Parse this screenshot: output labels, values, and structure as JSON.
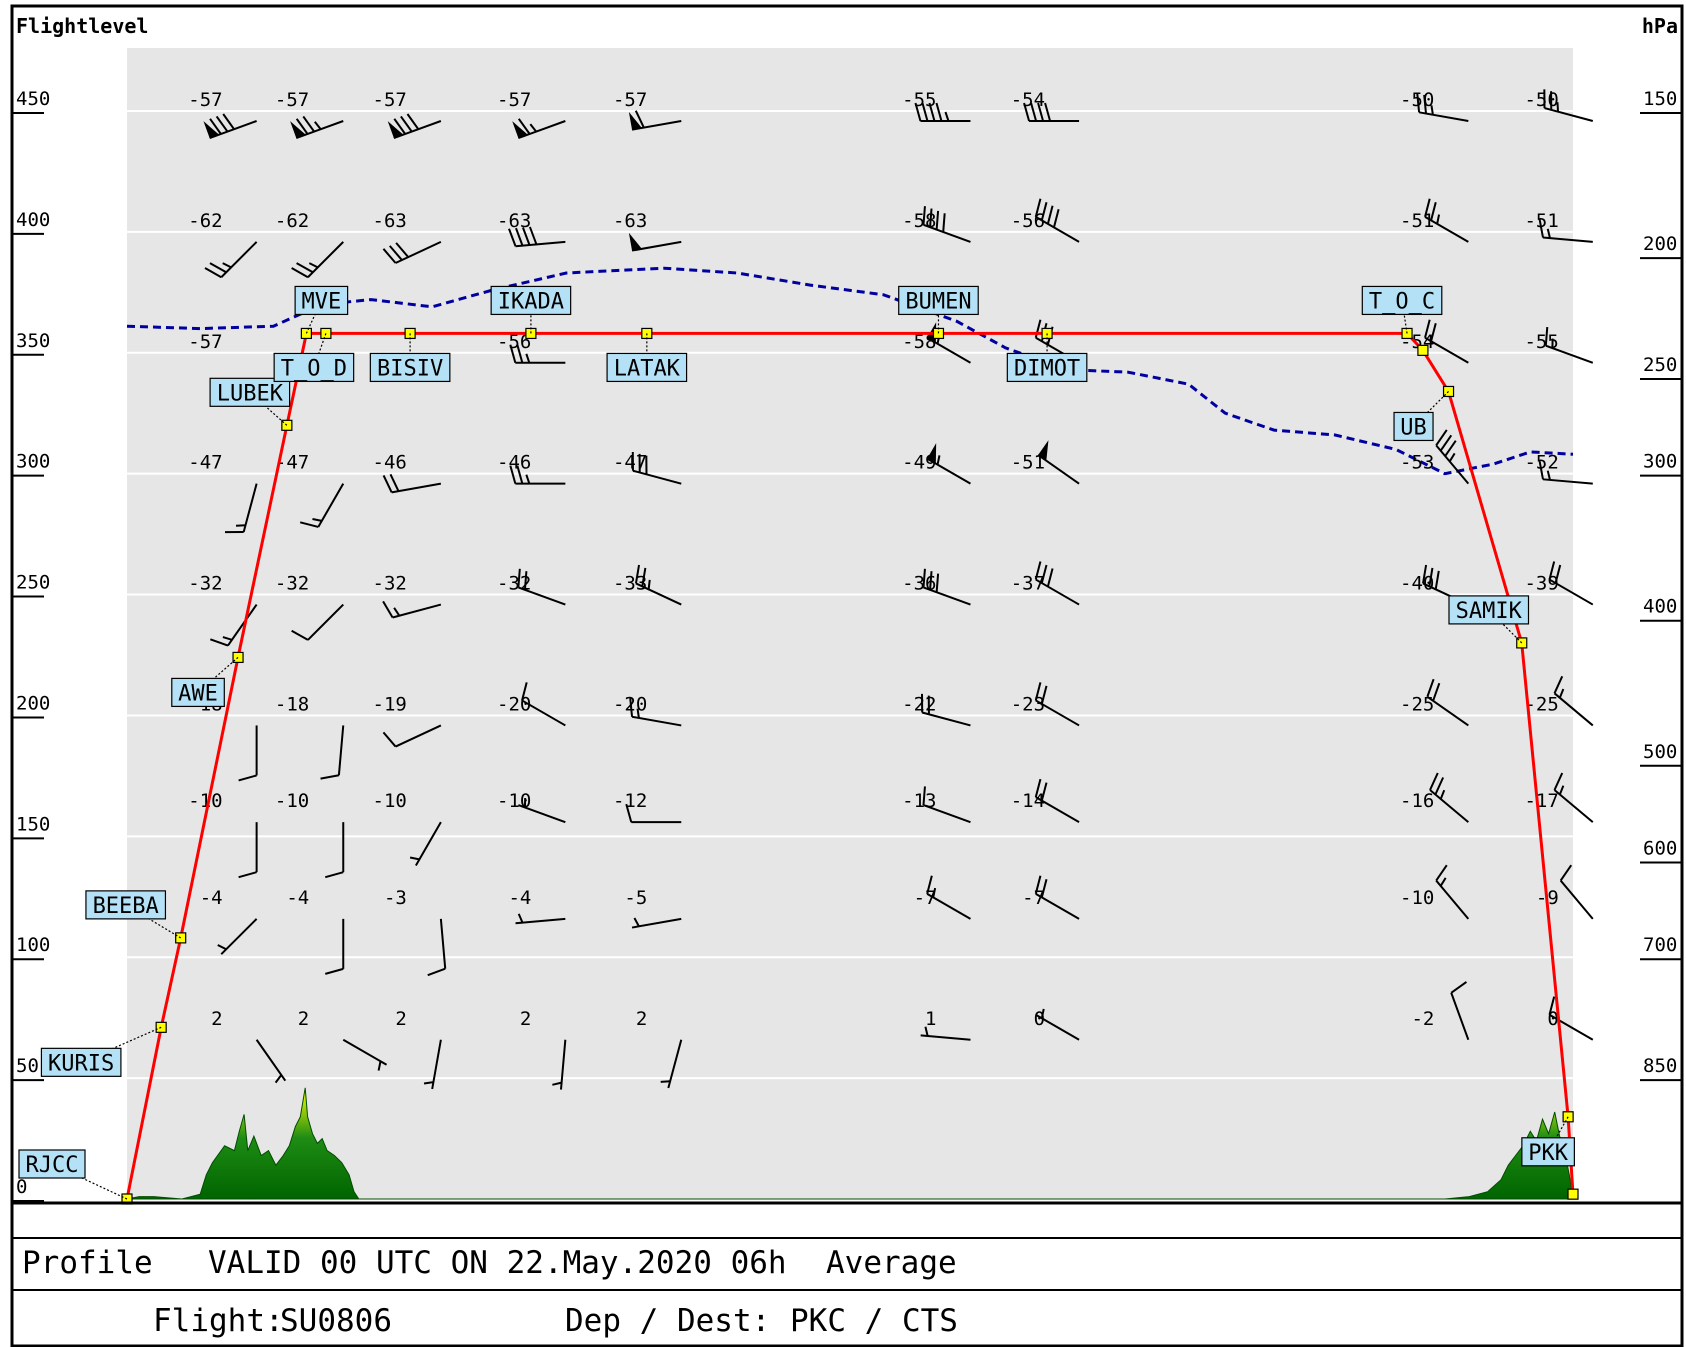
{
  "header": {
    "left_axis_title": "Flightlevel",
    "right_axis_title": "hPa"
  },
  "footer": {
    "profile_label": "Profile",
    "valid_text": "VALID 00 UTC ON 22.May.2020 06h",
    "mode_text": "Average",
    "flight_label": "Flight:",
    "flight_value": "SU0806",
    "dep_dest_label": "Dep / Dest:",
    "dep_dest_value": "PKC / CTS"
  },
  "colors": {
    "background": "#e6e6e6",
    "route": "#ff0000",
    "waypoint_fill": "#ffff00",
    "label_fill": "#b4e1f5",
    "tropopause": "#0000a0",
    "terrain_dark": "#006400",
    "terrain_light": "#ffff00"
  },
  "chart_data": {
    "type": "line",
    "xlabel": "",
    "ylabel": "Flightlevel",
    "y2label": "hPa",
    "ylim": [
      0,
      450
    ],
    "yticks": [
      0,
      50,
      100,
      150,
      200,
      250,
      300,
      350,
      400,
      450
    ],
    "hpa_ticks": [
      {
        "fl": 50,
        "hpa": "850"
      },
      {
        "fl": 100,
        "hpa": "700"
      },
      {
        "fl": 140,
        "hpa": "600"
      },
      {
        "fl": 180,
        "hpa": "500"
      },
      {
        "fl": 240,
        "hpa": "400"
      },
      {
        "fl": 300,
        "hpa": "300"
      },
      {
        "fl": 340,
        "hpa": "250"
      },
      {
        "fl": 390,
        "hpa": "200"
      },
      {
        "fl": 450,
        "hpa": "150"
      }
    ],
    "grid": true,
    "route": [
      {
        "x": 0,
        "fl": 0
      },
      {
        "x": 28,
        "fl": 71
      },
      {
        "x": 44,
        "fl": 108
      },
      {
        "x": 91,
        "fl": 224
      },
      {
        "x": 131,
        "fl": 320
      },
      {
        "x": 147,
        "fl": 358
      },
      {
        "x": 163,
        "fl": 358
      },
      {
        "x": 232,
        "fl": 358
      },
      {
        "x": 331,
        "fl": 358
      },
      {
        "x": 426,
        "fl": 358
      },
      {
        "x": 665,
        "fl": 358
      },
      {
        "x": 754,
        "fl": 358
      },
      {
        "x": 1049,
        "fl": 358
      },
      {
        "x": 1062,
        "fl": 351
      },
      {
        "x": 1083,
        "fl": 334
      },
      {
        "x": 1143,
        "fl": 230
      },
      {
        "x": 1181,
        "fl": 34
      },
      {
        "x": 1185,
        "fl": 2
      }
    ],
    "waypoints": [
      {
        "name": "RJCC",
        "x": 0,
        "fl": 0
      },
      {
        "name": "KURIS",
        "x": 28,
        "fl": 71
      },
      {
        "name": "BEEBA",
        "x": 44,
        "fl": 108
      },
      {
        "name": "AWE",
        "x": 91,
        "fl": 224
      },
      {
        "name": "LUBEK",
        "x": 131,
        "fl": 320
      },
      {
        "name": "MVE",
        "x": 147,
        "fl": 358
      },
      {
        "name": "T_O_D",
        "x": 163,
        "fl": 358
      },
      {
        "name": "BISIV",
        "x": 232,
        "fl": 358
      },
      {
        "name": "IKADA",
        "x": 331,
        "fl": 358
      },
      {
        "name": "LATAK",
        "x": 426,
        "fl": 358
      },
      {
        "name": "BUMEN",
        "x": 665,
        "fl": 358
      },
      {
        "name": "DIMOT",
        "x": 754,
        "fl": 358
      },
      {
        "name": "T_O_C",
        "x": 1049,
        "fl": 358
      },
      {
        "name": "UB",
        "x": 1083,
        "fl": 334
      },
      {
        "name": "SAMIK",
        "x": 1143,
        "fl": 230
      },
      {
        "name": "PKK",
        "x": 1181,
        "fl": 34
      }
    ],
    "tropopause": [
      {
        "x": 0,
        "fl": 361
      },
      {
        "x": 60,
        "fl": 360
      },
      {
        "x": 120,
        "fl": 361
      },
      {
        "x": 160,
        "fl": 370
      },
      {
        "x": 200,
        "fl": 372
      },
      {
        "x": 250,
        "fl": 369
      },
      {
        "x": 300,
        "fl": 376
      },
      {
        "x": 360,
        "fl": 383
      },
      {
        "x": 440,
        "fl": 385
      },
      {
        "x": 500,
        "fl": 383
      },
      {
        "x": 560,
        "fl": 378
      },
      {
        "x": 620,
        "fl": 374
      },
      {
        "x": 680,
        "fl": 363
      },
      {
        "x": 720,
        "fl": 352
      },
      {
        "x": 770,
        "fl": 343
      },
      {
        "x": 820,
        "fl": 342
      },
      {
        "x": 870,
        "fl": 337
      },
      {
        "x": 900,
        "fl": 325
      },
      {
        "x": 940,
        "fl": 318
      },
      {
        "x": 990,
        "fl": 316
      },
      {
        "x": 1040,
        "fl": 310
      },
      {
        "x": 1080,
        "fl": 300
      },
      {
        "x": 1120,
        "fl": 304
      },
      {
        "x": 1150,
        "fl": 309
      },
      {
        "x": 1185,
        "fl": 308
      }
    ],
    "terrain": [
      {
        "x": 0,
        "fl": 0
      },
      {
        "x": 10,
        "fl": 1
      },
      {
        "x": 22,
        "fl": 1
      },
      {
        "x": 45,
        "fl": 0
      },
      {
        "x": 60,
        "fl": 2
      },
      {
        "x": 65,
        "fl": 10
      },
      {
        "x": 70,
        "fl": 15
      },
      {
        "x": 80,
        "fl": 22
      },
      {
        "x": 88,
        "fl": 20
      },
      {
        "x": 92,
        "fl": 28
      },
      {
        "x": 96,
        "fl": 35
      },
      {
        "x": 99,
        "fl": 20
      },
      {
        "x": 104,
        "fl": 26
      },
      {
        "x": 110,
        "fl": 18
      },
      {
        "x": 116,
        "fl": 20
      },
      {
        "x": 122,
        "fl": 14
      },
      {
        "x": 128,
        "fl": 18
      },
      {
        "x": 133,
        "fl": 22
      },
      {
        "x": 138,
        "fl": 30
      },
      {
        "x": 142,
        "fl": 34
      },
      {
        "x": 146,
        "fl": 46
      },
      {
        "x": 148,
        "fl": 34
      },
      {
        "x": 152,
        "fl": 27
      },
      {
        "x": 156,
        "fl": 23
      },
      {
        "x": 160,
        "fl": 25
      },
      {
        "x": 164,
        "fl": 20
      },
      {
        "x": 170,
        "fl": 18
      },
      {
        "x": 176,
        "fl": 15
      },
      {
        "x": 182,
        "fl": 10
      },
      {
        "x": 186,
        "fl": 3
      },
      {
        "x": 190,
        "fl": 0
      },
      {
        "x": 1080,
        "fl": 0
      },
      {
        "x": 1100,
        "fl": 1
      },
      {
        "x": 1115,
        "fl": 3
      },
      {
        "x": 1126,
        "fl": 8
      },
      {
        "x": 1132,
        "fl": 14
      },
      {
        "x": 1138,
        "fl": 18
      },
      {
        "x": 1144,
        "fl": 22
      },
      {
        "x": 1150,
        "fl": 28
      },
      {
        "x": 1155,
        "fl": 24
      },
      {
        "x": 1160,
        "fl": 33
      },
      {
        "x": 1165,
        "fl": 27
      },
      {
        "x": 1170,
        "fl": 36
      },
      {
        "x": 1174,
        "fl": 26
      },
      {
        "x": 1178,
        "fl": 20
      },
      {
        "x": 1182,
        "fl": 10
      },
      {
        "x": 1185,
        "fl": 0
      }
    ],
    "wind_columns_x": [
      80,
      151,
      231,
      333,
      428,
      665,
      754,
      1073,
      1175
    ],
    "wind_levels_fl": [
      450,
      400,
      350,
      300,
      250,
      200,
      160,
      120,
      70
    ],
    "temperatures": [
      [
        "-57",
        "-57",
        "-57",
        "-57",
        "-57",
        "-55",
        "-54",
        "-50",
        "-50"
      ],
      [
        "-62",
        "-62",
        "-63",
        "-63",
        "-63",
        "-58",
        "-56",
        "-51",
        "-51"
      ],
      [
        "-57",
        "",
        "",
        "-56",
        "",
        "-58",
        "",
        "-54",
        "-55"
      ],
      [
        "-47",
        "-47",
        "-46",
        "-46",
        "-47",
        "-49",
        "-51",
        "-53",
        "-52"
      ],
      [
        "-32",
        "-32",
        "-32",
        "-32",
        "-33",
        "-36",
        "-37",
        "-40",
        "-39"
      ],
      [
        "-18",
        "-18",
        "-19",
        "-20",
        "-20",
        "-22",
        "-23",
        "-25",
        "-25"
      ],
      [
        "-10",
        "-10",
        "-10",
        "-10",
        "-12",
        "-13",
        "-14",
        "-16",
        "-17"
      ],
      [
        "-4",
        "-4",
        "-3",
        "-4",
        "-5",
        "-7",
        "-7",
        "-10",
        "-9"
      ],
      [
        "2",
        "2",
        "2",
        "2",
        "2",
        "1",
        "0",
        "-2",
        "0"
      ]
    ],
    "winds": [
      [
        {
          "d": 250,
          "s": 80
        },
        {
          "d": 250,
          "s": 75
        },
        {
          "d": 250,
          "s": 80
        },
        {
          "d": 250,
          "s": 65
        },
        {
          "d": 260,
          "s": 60
        },
        {
          "d": 270,
          "s": 45
        },
        {
          "d": 270,
          "s": 40
        },
        {
          "d": 280,
          "s": 25
        },
        {
          "d": 285,
          "s": 25
        }
      ],
      [
        {
          "d": 225,
          "s": 25
        },
        {
          "d": 225,
          "s": 25
        },
        {
          "d": 245,
          "s": 30
        },
        {
          "d": 265,
          "s": 40
        },
        {
          "d": 260,
          "s": 50
        },
        {
          "d": 290,
          "s": 40
        },
        {
          "d": 300,
          "s": 40
        },
        {
          "d": 300,
          "s": 25
        },
        {
          "d": 275,
          "s": 15
        }
      ],
      [
        {
          "d": 0,
          "s": 0
        },
        {
          "d": 0,
          "s": 0
        },
        {
          "d": 0,
          "s": 0
        },
        {
          "d": 270,
          "s": 25
        },
        {
          "d": 0,
          "s": 0
        },
        {
          "d": 300,
          "s": 55
        },
        {
          "d": 300,
          "s": 30
        },
        {
          "d": 300,
          "s": 20
        },
        {
          "d": 290,
          "s": 15
        }
      ],
      [
        {
          "d": 195,
          "s": 15
        },
        {
          "d": 210,
          "s": 15
        },
        {
          "d": 260,
          "s": 20
        },
        {
          "d": 270,
          "s": 25
        },
        {
          "d": 285,
          "s": 30
        },
        {
          "d": 300,
          "s": 55
        },
        {
          "d": 305,
          "s": 50
        },
        {
          "d": 320,
          "s": 35
        },
        {
          "d": 275,
          "s": 15
        }
      ],
      [
        {
          "d": 215,
          "s": 15
        },
        {
          "d": 225,
          "s": 10
        },
        {
          "d": 255,
          "s": 15
        },
        {
          "d": 290,
          "s": 20
        },
        {
          "d": 295,
          "s": 25
        },
        {
          "d": 290,
          "s": 30
        },
        {
          "d": 300,
          "s": 30
        },
        {
          "d": 295,
          "s": 30
        },
        {
          "d": 300,
          "s": 20
        }
      ],
      [
        {
          "d": 180,
          "s": 10
        },
        {
          "d": 185,
          "s": 10
        },
        {
          "d": 245,
          "s": 10
        },
        {
          "d": 300,
          "s": 10
        },
        {
          "d": 280,
          "s": 15
        },
        {
          "d": 285,
          "s": 20
        },
        {
          "d": 300,
          "s": 20
        },
        {
          "d": 305,
          "s": 20
        },
        {
          "d": 310,
          "s": 15
        }
      ],
      [
        {
          "d": 180,
          "s": 10
        },
        {
          "d": 180,
          "s": 10
        },
        {
          "d": 210,
          "s": 5
        },
        {
          "d": 290,
          "s": 5
        },
        {
          "d": 270,
          "s": 10
        },
        {
          "d": 290,
          "s": 10
        },
        {
          "d": 300,
          "s": 20
        },
        {
          "d": 310,
          "s": 25
        },
        {
          "d": 310,
          "s": 15
        }
      ],
      [
        {
          "d": 225,
          "s": 5
        },
        {
          "d": 180,
          "s": 10
        },
        {
          "d": 175,
          "s": 10
        },
        {
          "d": 265,
          "s": 5
        },
        {
          "d": 260,
          "s": 5
        },
        {
          "d": 300,
          "s": 15
        },
        {
          "d": 300,
          "s": 20
        },
        {
          "d": 320,
          "s": 15
        },
        {
          "d": 320,
          "s": 10
        }
      ],
      [
        {
          "d": 145,
          "s": 5
        },
        {
          "d": 120,
          "s": 5
        },
        {
          "d": 190,
          "s": 5
        },
        {
          "d": 185,
          "s": 5
        },
        {
          "d": 195,
          "s": 5
        },
        {
          "d": 275,
          "s": 5
        },
        {
          "d": 300,
          "s": 5
        },
        {
          "d": 340,
          "s": 10
        },
        {
          "d": 300,
          "s": 10
        }
      ]
    ]
  }
}
